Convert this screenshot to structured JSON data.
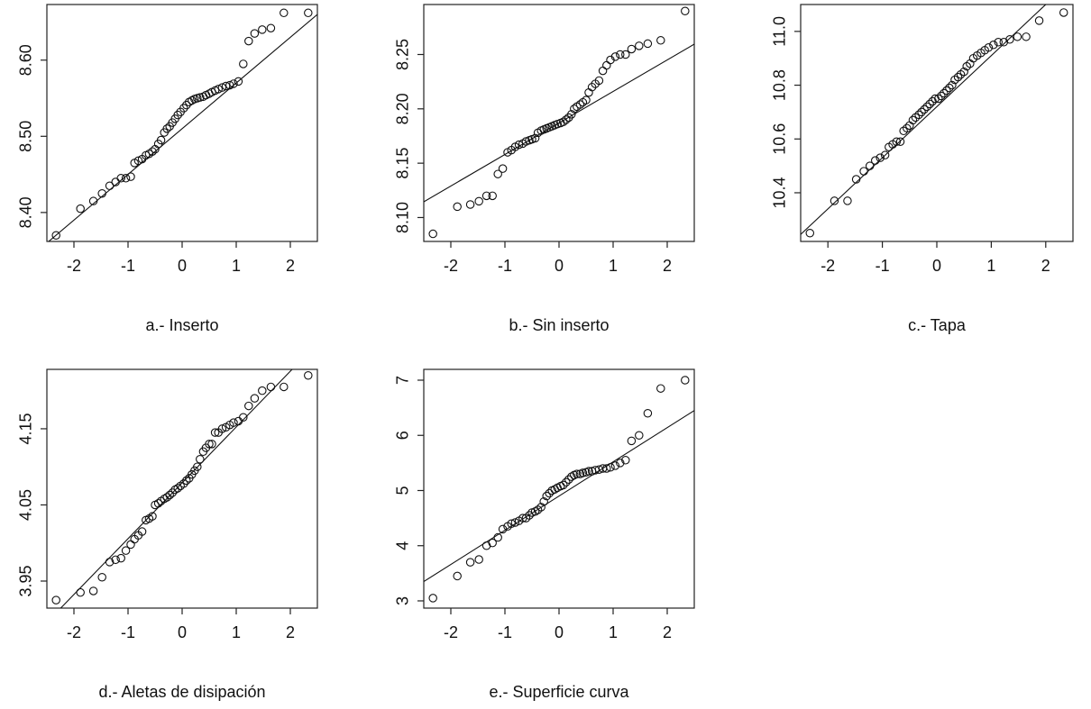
{
  "chart_data": [
    {
      "type": "scatter",
      "xlabel": "a.- Inserto",
      "x": [
        -2.33,
        -1.88,
        -1.64,
        -1.48,
        -1.34,
        -1.23,
        -1.13,
        -1.04,
        -0.95,
        -0.88,
        -0.81,
        -0.74,
        -0.67,
        -0.61,
        -0.55,
        -0.5,
        -0.44,
        -0.39,
        -0.33,
        -0.28,
        -0.23,
        -0.18,
        -0.13,
        -0.08,
        -0.03,
        0.03,
        0.08,
        0.13,
        0.18,
        0.23,
        0.28,
        0.33,
        0.39,
        0.44,
        0.5,
        0.55,
        0.61,
        0.67,
        0.74,
        0.81,
        0.88,
        0.95,
        1.04,
        1.13,
        1.23,
        1.34,
        1.48,
        1.64,
        1.88,
        2.33
      ],
      "values": [
        8.37,
        8.405,
        8.415,
        8.425,
        8.435,
        8.44,
        8.445,
        8.445,
        8.447,
        8.465,
        8.468,
        8.47,
        8.475,
        8.477,
        8.48,
        8.483,
        8.49,
        8.495,
        8.505,
        8.51,
        8.513,
        8.518,
        8.523,
        8.528,
        8.532,
        8.537,
        8.541,
        8.545,
        8.547,
        8.549,
        8.55,
        8.551,
        8.552,
        8.554,
        8.556,
        8.558,
        8.56,
        8.562,
        8.564,
        8.566,
        8.567,
        8.569,
        8.572,
        8.595,
        8.625,
        8.635,
        8.64,
        8.642,
        8.662,
        8.662
      ],
      "qq_line": {
        "intercept": 8.51,
        "slope": 0.06
      },
      "xlim": [
        -2.5,
        2.5
      ],
      "xticks": [
        -2,
        -1,
        0,
        1,
        2
      ],
      "ylim": [
        8.362,
        8.673
      ],
      "yticks": [
        {
          "value": 8.4,
          "label": "8.40"
        },
        {
          "value": 8.5,
          "label": "8.50"
        },
        {
          "value": 8.6,
          "label": "8.60"
        }
      ]
    },
    {
      "type": "scatter",
      "xlabel": "b.- Sin inserto",
      "x": [
        -2.33,
        -1.88,
        -1.64,
        -1.48,
        -1.34,
        -1.23,
        -1.13,
        -1.04,
        -0.95,
        -0.88,
        -0.81,
        -0.74,
        -0.67,
        -0.61,
        -0.55,
        -0.5,
        -0.44,
        -0.39,
        -0.33,
        -0.28,
        -0.23,
        -0.18,
        -0.13,
        -0.08,
        -0.03,
        0.03,
        0.08,
        0.13,
        0.18,
        0.23,
        0.28,
        0.33,
        0.39,
        0.44,
        0.5,
        0.55,
        0.61,
        0.67,
        0.74,
        0.81,
        0.88,
        0.95,
        1.04,
        1.13,
        1.23,
        1.34,
        1.48,
        1.64,
        1.88,
        2.33
      ],
      "values": [
        8.085,
        8.11,
        8.112,
        8.115,
        8.12,
        8.12,
        8.14,
        8.145,
        8.16,
        8.162,
        8.165,
        8.167,
        8.168,
        8.17,
        8.171,
        8.172,
        8.173,
        8.178,
        8.18,
        8.181,
        8.182,
        8.183,
        8.184,
        8.185,
        8.186,
        8.187,
        8.188,
        8.19,
        8.192,
        8.195,
        8.2,
        8.202,
        8.204,
        8.206,
        8.208,
        8.215,
        8.22,
        8.223,
        8.226,
        8.235,
        8.24,
        8.245,
        8.248,
        8.25,
        8.25,
        8.255,
        8.258,
        8.26,
        8.263,
        8.29
      ],
      "qq_line": {
        "intercept": 8.187,
        "slope": 0.029
      },
      "xlim": [
        -2.5,
        2.5
      ],
      "xticks": [
        -2,
        -1,
        0,
        1,
        2
      ],
      "ylim": [
        8.078,
        8.296
      ],
      "yticks": [
        {
          "value": 8.1,
          "label": "8.10"
        },
        8.15,
        {
          "value": 8.2,
          "label": "8.20"
        },
        8.25
      ]
    },
    {
      "type": "scatter",
      "xlabel": "c.- Tapa",
      "x": [
        -2.33,
        -1.88,
        -1.64,
        -1.48,
        -1.34,
        -1.23,
        -1.13,
        -1.04,
        -0.95,
        -0.88,
        -0.81,
        -0.74,
        -0.67,
        -0.61,
        -0.55,
        -0.5,
        -0.44,
        -0.39,
        -0.33,
        -0.28,
        -0.23,
        -0.18,
        -0.13,
        -0.08,
        -0.03,
        0.03,
        0.08,
        0.13,
        0.18,
        0.23,
        0.28,
        0.33,
        0.39,
        0.44,
        0.5,
        0.55,
        0.61,
        0.67,
        0.74,
        0.81,
        0.88,
        0.95,
        1.04,
        1.13,
        1.23,
        1.34,
        1.48,
        1.64,
        1.88,
        2.33
      ],
      "values": [
        10.25,
        10.37,
        10.37,
        10.45,
        10.48,
        10.5,
        10.52,
        10.53,
        10.54,
        10.57,
        10.58,
        10.59,
        10.59,
        10.63,
        10.64,
        10.65,
        10.67,
        10.68,
        10.69,
        10.7,
        10.71,
        10.72,
        10.73,
        10.74,
        10.75,
        10.75,
        10.76,
        10.77,
        10.78,
        10.79,
        10.8,
        10.82,
        10.83,
        10.84,
        10.85,
        10.87,
        10.88,
        10.9,
        10.91,
        10.92,
        10.93,
        10.94,
        10.95,
        10.96,
        10.96,
        10.97,
        10.98,
        10.98,
        11.04,
        11.07
      ],
      "qq_line": {
        "intercept": 10.72,
        "slope": 0.19
      },
      "xlim": [
        -2.5,
        2.5
      ],
      "xticks": [
        -2,
        -1,
        0,
        1,
        2
      ],
      "ylim": [
        10.219,
        11.1
      ],
      "yticks": [
        10.4,
        10.6,
        10.8,
        {
          "value": 11,
          "label": "11.0"
        }
      ]
    },
    {
      "type": "scatter",
      "xlabel": "d.- Aletas de disipación",
      "x": [
        -2.33,
        -1.88,
        -1.64,
        -1.48,
        -1.34,
        -1.23,
        -1.13,
        -1.04,
        -0.95,
        -0.88,
        -0.81,
        -0.74,
        -0.67,
        -0.61,
        -0.55,
        -0.5,
        -0.44,
        -0.39,
        -0.33,
        -0.28,
        -0.23,
        -0.18,
        -0.13,
        -0.08,
        -0.03,
        0.03,
        0.08,
        0.13,
        0.18,
        0.23,
        0.28,
        0.33,
        0.39,
        0.44,
        0.5,
        0.55,
        0.61,
        0.67,
        0.74,
        0.81,
        0.88,
        0.95,
        1.04,
        1.13,
        1.23,
        1.34,
        1.48,
        1.64,
        1.88,
        2.33
      ],
      "values": [
        3.925,
        3.935,
        3.937,
        3.955,
        3.975,
        3.978,
        3.98,
        3.99,
        3.998,
        4.005,
        4.01,
        4.015,
        4.03,
        4.032,
        4.035,
        4.05,
        4.052,
        4.055,
        4.058,
        4.06,
        4.063,
        4.066,
        4.07,
        4.072,
        4.075,
        4.078,
        4.082,
        4.085,
        4.09,
        4.095,
        4.1,
        4.11,
        4.12,
        4.125,
        4.13,
        4.13,
        4.145,
        4.145,
        4.15,
        4.152,
        4.155,
        4.158,
        4.16,
        4.165,
        4.18,
        4.19,
        4.2,
        4.205,
        4.205,
        4.22
      ],
      "qq_line": {
        "intercept": 4.079,
        "slope": 0.0733
      },
      "xlim": [
        -2.5,
        2.5
      ],
      "xticks": [
        -2,
        -1,
        0,
        1,
        2
      ],
      "ylim": [
        3.9145,
        4.228
      ],
      "yticks": [
        3.95,
        4.05,
        4.15
      ]
    },
    {
      "type": "scatter",
      "xlabel": "e.- Superficie curva",
      "x": [
        -2.33,
        -1.88,
        -1.64,
        -1.48,
        -1.34,
        -1.23,
        -1.13,
        -1.04,
        -0.95,
        -0.88,
        -0.81,
        -0.74,
        -0.67,
        -0.61,
        -0.55,
        -0.5,
        -0.44,
        -0.39,
        -0.33,
        -0.28,
        -0.23,
        -0.18,
        -0.13,
        -0.08,
        -0.03,
        0.03,
        0.08,
        0.13,
        0.18,
        0.23,
        0.28,
        0.33,
        0.39,
        0.44,
        0.5,
        0.55,
        0.61,
        0.67,
        0.74,
        0.81,
        0.88,
        0.95,
        1.04,
        1.13,
        1.23,
        1.34,
        1.48,
        1.64,
        1.88,
        2.33
      ],
      "values": [
        3.05,
        3.45,
        3.7,
        3.75,
        4.0,
        4.05,
        4.15,
        4.3,
        4.35,
        4.4,
        4.42,
        4.45,
        4.5,
        4.5,
        4.55,
        4.6,
        4.62,
        4.65,
        4.7,
        4.8,
        4.9,
        4.95,
        5.0,
        5.02,
        5.05,
        5.08,
        5.1,
        5.15,
        5.2,
        5.25,
        5.28,
        5.3,
        5.3,
        5.32,
        5.33,
        5.35,
        5.35,
        5.37,
        5.38,
        5.4,
        5.4,
        5.42,
        5.45,
        5.5,
        5.55,
        5.9,
        6.0,
        6.4,
        6.85,
        7.0
      ],
      "qq_line": {
        "intercept": 4.9,
        "slope": 0.62
      },
      "xlim": [
        -2.5,
        2.5
      ],
      "xticks": [
        -2,
        -1,
        0,
        1,
        2
      ],
      "ylim": [
        2.869,
        7.196
      ],
      "yticks": [
        3,
        4,
        5,
        6,
        7
      ]
    }
  ]
}
